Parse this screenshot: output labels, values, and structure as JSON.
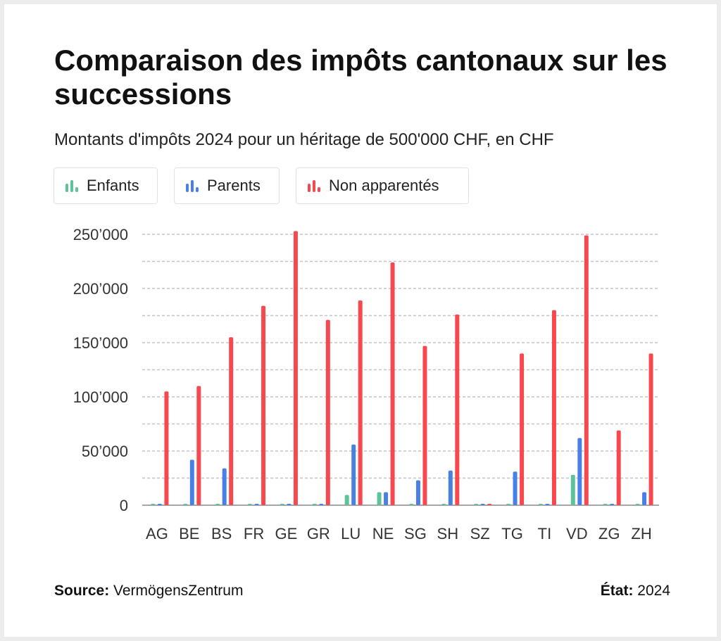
{
  "header": {
    "title": "Comparaison des impôts cantonaux sur les successions",
    "subtitle": "Montants d'impôts 2024 pour un héritage de 500'000 CHF, en CHF"
  },
  "legend": [
    {
      "label": "Enfants",
      "color": "#5dc398",
      "icon": "bar-chart-icon"
    },
    {
      "label": "Parents",
      "color": "#4a80e4",
      "icon": "bar-chart-icon"
    },
    {
      "label": "Non apparentés",
      "color": "#f5494f",
      "icon": "bar-chart-icon"
    }
  ],
  "footer": {
    "source_label": "Source:",
    "source_value": "VermögensZentrum",
    "state_label": "État:",
    "state_value": "2024"
  },
  "chart_data": {
    "type": "bar",
    "title": "Comparaison des impôts cantonaux sur les successions",
    "subtitle": "Montants d'impôts 2024 pour un héritage de 500'000 CHF, en CHF",
    "categories": [
      "AG",
      "BE",
      "BS",
      "FR",
      "GE",
      "GR",
      "LU",
      "NE",
      "SG",
      "SH",
      "SZ",
      "TG",
      "TI",
      "VD",
      "ZG",
      "ZH"
    ],
    "series": [
      {
        "name": "Enfants",
        "color": "#5dc398",
        "values": [
          0,
          0,
          0,
          0,
          0,
          0,
          9500,
          12000,
          0,
          0,
          0,
          0,
          0,
          28000,
          0,
          0
        ]
      },
      {
        "name": "Parents",
        "color": "#4a80e4",
        "values": [
          0,
          42000,
          34000,
          0,
          0,
          0,
          56000,
          12000,
          23000,
          32000,
          0,
          31000,
          0,
          62000,
          0,
          12000
        ]
      },
      {
        "name": "Non apparentés",
        "color": "#f5494f",
        "values": [
          105000,
          110000,
          155000,
          184000,
          253000,
          171000,
          189000,
          224000,
          147000,
          176000,
          0,
          140000,
          180000,
          249000,
          69000,
          140000
        ]
      }
    ],
    "yticks": [
      0,
      50000,
      100000,
      150000,
      200000,
      250000
    ],
    "ytick_labels": [
      "0",
      "50’000",
      "100’000",
      "150’000",
      "200’000",
      "250’000"
    ],
    "ylim": [
      0,
      250000
    ],
    "grid": true,
    "legend_position": "top-left"
  }
}
